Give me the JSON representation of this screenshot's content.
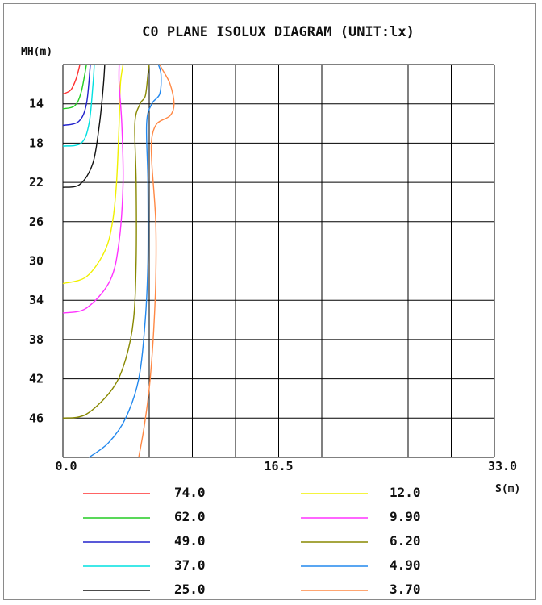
{
  "chart_data": {
    "type": "line",
    "title": "C0 PLANE ISOLUX DIAGRAM (UNIT:lx)",
    "ylabel": "MH(m)",
    "xlabel": "S(m)",
    "x_range": [
      0,
      33
    ],
    "x_ticks": [
      "0.0",
      "16.5",
      "33.0"
    ],
    "y_range": [
      10,
      50
    ],
    "y_ticks": [
      "14",
      "18",
      "22",
      "26",
      "30",
      "34",
      "38",
      "42",
      "46"
    ],
    "grid": true,
    "legend_position": "bottom",
    "series": [
      {
        "name": "74.0",
        "color": "#ff3030",
        "points": [
          [
            0,
            13.0
          ],
          [
            0.6,
            12.6
          ],
          [
            1.0,
            11.5
          ],
          [
            1.3,
            10.0
          ]
        ]
      },
      {
        "name": "62.0",
        "color": "#22cc22",
        "points": [
          [
            0,
            14.5
          ],
          [
            0.9,
            14.2
          ],
          [
            1.4,
            12.8
          ],
          [
            1.8,
            10.0
          ]
        ]
      },
      {
        "name": "49.0",
        "color": "#2222cc",
        "points": [
          [
            0,
            16.2
          ],
          [
            1.2,
            15.8
          ],
          [
            1.8,
            14.0
          ],
          [
            2.1,
            10.0
          ]
        ]
      },
      {
        "name": "37.0",
        "color": "#00e0e0",
        "points": [
          [
            0,
            18.3
          ],
          [
            1.4,
            18.0
          ],
          [
            2.0,
            16.0
          ],
          [
            2.3,
            12.0
          ],
          [
            2.4,
            10.0
          ]
        ]
      },
      {
        "name": "25.0",
        "color": "#111111",
        "points": [
          [
            0,
            22.5
          ],
          [
            1.3,
            22.2
          ],
          [
            2.3,
            20.0
          ],
          [
            2.8,
            16.0
          ],
          [
            3.1,
            12.0
          ],
          [
            3.2,
            10.0
          ]
        ]
      },
      {
        "name": "12.0",
        "color": "#f0f000",
        "points": [
          [
            0,
            32.3
          ],
          [
            1.8,
            31.6
          ],
          [
            3.2,
            29.0
          ],
          [
            3.8,
            26.0
          ],
          [
            4.1,
            22.0
          ],
          [
            4.3,
            16.0
          ],
          [
            4.4,
            12.0
          ],
          [
            4.6,
            10.0
          ]
        ]
      },
      {
        "name": "9.90",
        "color": "#ff33ff",
        "points": [
          [
            0,
            35.3
          ],
          [
            1.8,
            34.8
          ],
          [
            3.6,
            32.0
          ],
          [
            4.3,
            28.0
          ],
          [
            4.6,
            22.0
          ],
          [
            4.5,
            16.0
          ],
          [
            4.3,
            12.0
          ],
          [
            4.3,
            10.0
          ]
        ]
      },
      {
        "name": "6.20",
        "color": "#888800",
        "points": [
          [
            0,
            46.0
          ],
          [
            1.8,
            45.6
          ],
          [
            3.8,
            43.0
          ],
          [
            4.8,
            40.0
          ],
          [
            5.4,
            36.0
          ],
          [
            5.6,
            30.0
          ],
          [
            5.6,
            22.0
          ],
          [
            5.5,
            16.0
          ],
          [
            5.9,
            14.0
          ],
          [
            6.3,
            13.2
          ],
          [
            6.5,
            11.0
          ],
          [
            6.6,
            10.0
          ]
        ]
      },
      {
        "name": "4.90",
        "color": "#2288ee",
        "points": [
          [
            2.0,
            50.0
          ],
          [
            3.5,
            48.5
          ],
          [
            4.8,
            46.0
          ],
          [
            5.8,
            42.0
          ],
          [
            6.3,
            36.0
          ],
          [
            6.5,
            30.0
          ],
          [
            6.5,
            22.0
          ],
          [
            6.4,
            16.0
          ],
          [
            6.8,
            14.0
          ],
          [
            7.4,
            13.0
          ],
          [
            7.5,
            11.0
          ],
          [
            7.3,
            10.0
          ]
        ]
      },
      {
        "name": "3.70",
        "color": "#ff8844",
        "points": [
          [
            5.8,
            50.0
          ],
          [
            6.2,
            47.0
          ],
          [
            6.6,
            43.0
          ],
          [
            6.9,
            38.0
          ],
          [
            7.1,
            32.0
          ],
          [
            7.1,
            26.0
          ],
          [
            6.8,
            20.0
          ],
          [
            6.8,
            17.5
          ],
          [
            7.2,
            16.0
          ],
          [
            8.2,
            15.2
          ],
          [
            8.5,
            14.0
          ],
          [
            8.2,
            12.0
          ],
          [
            7.6,
            10.5
          ],
          [
            7.4,
            10.0
          ]
        ]
      }
    ]
  }
}
